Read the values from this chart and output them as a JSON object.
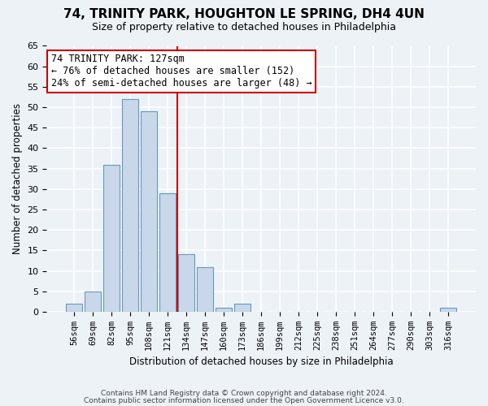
{
  "title": "74, TRINITY PARK, HOUGHTON LE SPRING, DH4 4UN",
  "subtitle": "Size of property relative to detached houses in Philadelphia",
  "xlabel": "Distribution of detached houses by size in Philadelphia",
  "ylabel": "Number of detached properties",
  "categories": [
    "56sqm",
    "69sqm",
    "82sqm",
    "95sqm",
    "108sqm",
    "121sqm",
    "134sqm",
    "147sqm",
    "160sqm",
    "173sqm",
    "186sqm",
    "199sqm",
    "212sqm",
    "225sqm",
    "238sqm",
    "251sqm",
    "264sqm",
    "277sqm",
    "290sqm",
    "303sqm",
    "316sqm"
  ],
  "values": [
    2,
    5,
    36,
    52,
    49,
    29,
    14,
    11,
    1,
    2,
    0,
    0,
    0,
    0,
    0,
    0,
    0,
    0,
    0,
    0,
    1
  ],
  "bar_color": "#c8d8ea",
  "bar_edge_color": "#6699bb",
  "vline_x_index": 5,
  "vline_color": "#cc0000",
  "ylim": [
    0,
    65
  ],
  "yticks": [
    0,
    5,
    10,
    15,
    20,
    25,
    30,
    35,
    40,
    45,
    50,
    55,
    60,
    65
  ],
  "annotation_text": "74 TRINITY PARK: 127sqm\n← 76% of detached houses are smaller (152)\n24% of semi-detached houses are larger (48) →",
  "annotation_box_facecolor": "#ffffff",
  "annotation_box_edgecolor": "#cc0000",
  "footer1": "Contains HM Land Registry data © Crown copyright and database right 2024.",
  "footer2": "Contains public sector information licensed under the Open Government Licence v3.0.",
  "background_color": "#edf2f7",
  "grid_color": "#ffffff"
}
